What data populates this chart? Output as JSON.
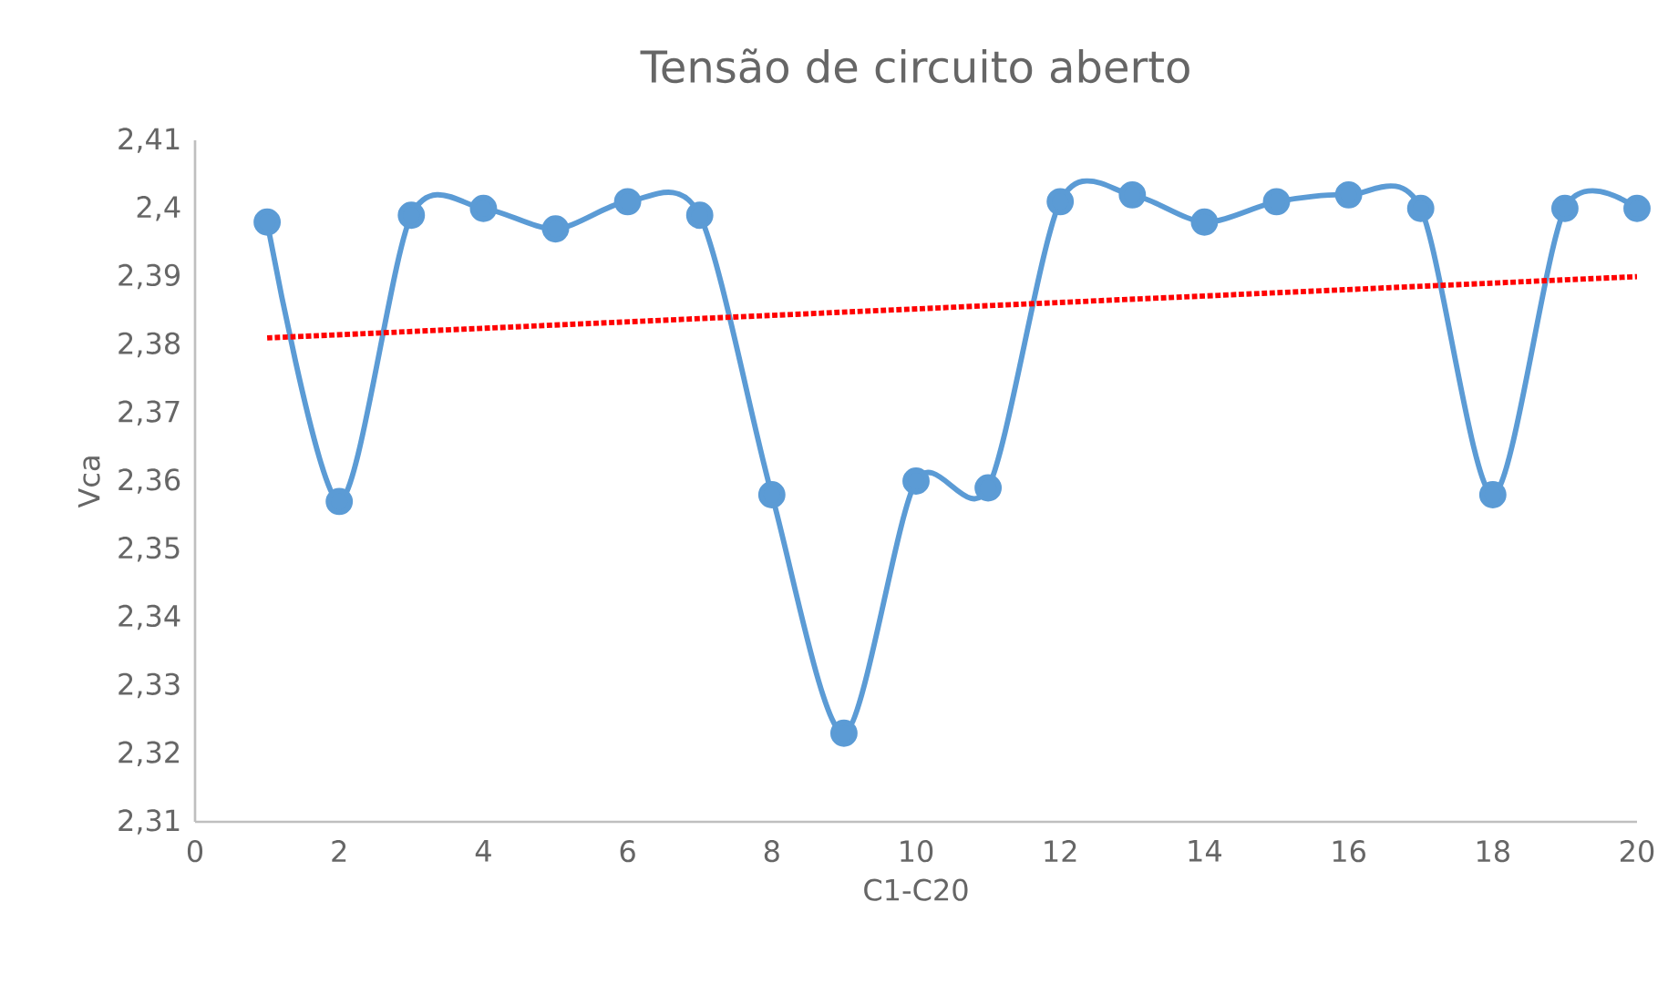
{
  "chart_data": {
    "type": "line",
    "title": "Tensão de circuito aberto",
    "xlabel": "C1-C20",
    "ylabel": "Vca",
    "x": [
      1,
      2,
      3,
      4,
      5,
      6,
      7,
      8,
      9,
      10,
      11,
      12,
      13,
      14,
      15,
      16,
      17,
      18,
      19,
      20
    ],
    "series": [
      {
        "color": "#5b9bd5",
        "marker": "circle",
        "line_style": "solid",
        "values": [
          2.398,
          2.357,
          2.399,
          2.4,
          2.397,
          2.401,
          2.399,
          2.358,
          2.323,
          2.36,
          2.359,
          2.401,
          2.402,
          2.398,
          2.401,
          2.402,
          2.4,
          2.358,
          2.4,
          2.4
        ]
      },
      {
        "type": "line",
        "color": "#ff0000",
        "marker": "none",
        "line_style": "dotted",
        "x": [
          1,
          20
        ],
        "values": [
          2.381,
          2.39
        ]
      }
    ],
    "xlim": [
      0,
      20
    ],
    "xticks": [
      0,
      2,
      4,
      6,
      8,
      10,
      12,
      14,
      16,
      18,
      20
    ],
    "ylim": [
      2.31,
      2.41
    ],
    "yticks": [
      {
        "value": 2.31,
        "label": "2,31"
      },
      {
        "value": 2.32,
        "label": "2,32"
      },
      {
        "value": 2.33,
        "label": "2,33"
      },
      {
        "value": 2.34,
        "label": "2,34"
      },
      {
        "value": 2.35,
        "label": "2,35"
      },
      {
        "value": 2.36,
        "label": "2,36"
      },
      {
        "value": 2.37,
        "label": "2,37"
      },
      {
        "value": 2.38,
        "label": "2,38"
      },
      {
        "value": 2.39,
        "label": "2,39"
      },
      {
        "value": 2.4,
        "label": "2,4"
      },
      {
        "value": 2.41,
        "label": "2,41"
      }
    ],
    "grid": false
  }
}
